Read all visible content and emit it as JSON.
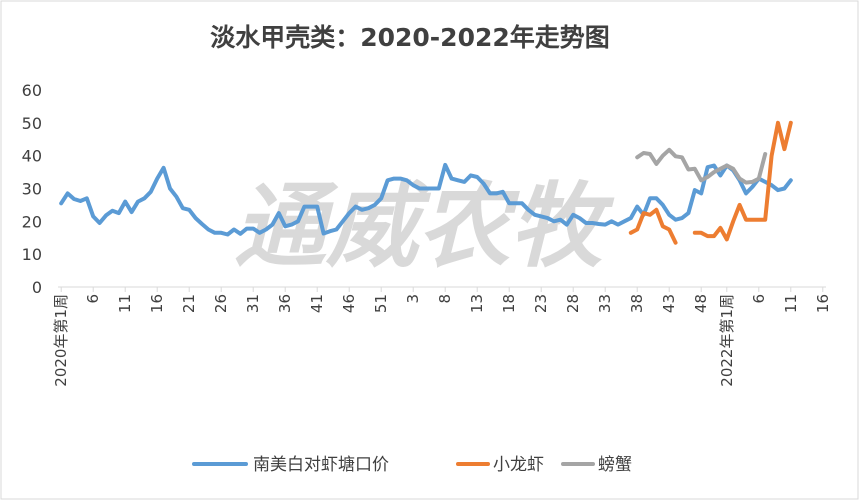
{
  "chart_data": {
    "type": "line",
    "title": "淡水甲壳类：2020-2022年走势图",
    "watermark": "通威农牧",
    "ylim": [
      0,
      60
    ],
    "yticks": [
      0,
      10,
      20,
      30,
      40,
      50,
      60
    ],
    "grid": false,
    "legend_position": "bottom",
    "x_count": 120,
    "xtick_labels": [
      {
        "i": 0,
        "label": "2020年第1周"
      },
      {
        "i": 5,
        "label": "6"
      },
      {
        "i": 10,
        "label": "11"
      },
      {
        "i": 15,
        "label": "16"
      },
      {
        "i": 20,
        "label": "21"
      },
      {
        "i": 25,
        "label": "26"
      },
      {
        "i": 30,
        "label": "31"
      },
      {
        "i": 35,
        "label": "36"
      },
      {
        "i": 40,
        "label": "41"
      },
      {
        "i": 45,
        "label": "46"
      },
      {
        "i": 50,
        "label": "51"
      },
      {
        "i": 55,
        "label": "3"
      },
      {
        "i": 60,
        "label": "8"
      },
      {
        "i": 65,
        "label": "13"
      },
      {
        "i": 70,
        "label": "18"
      },
      {
        "i": 75,
        "label": "23"
      },
      {
        "i": 80,
        "label": "28"
      },
      {
        "i": 85,
        "label": "33"
      },
      {
        "i": 90,
        "label": "38"
      },
      {
        "i": 95,
        "label": "43"
      },
      {
        "i": 100,
        "label": "48"
      },
      {
        "i": 104,
        "label": "2022年第1周"
      },
      {
        "i": 109,
        "label": "6"
      },
      {
        "i": 114,
        "label": "11"
      },
      {
        "i": 119,
        "label": "16"
      }
    ],
    "series": [
      {
        "name": "南美白对虾塘口价",
        "color": "#5b9bd5",
        "points": [
          [
            0,
            25.5
          ],
          [
            1,
            28.5
          ],
          [
            2,
            26.8
          ],
          [
            3,
            26.2
          ],
          [
            4,
            27
          ],
          [
            5,
            21.5
          ],
          [
            6,
            19.5
          ],
          [
            7,
            21.8
          ],
          [
            8,
            23.2
          ],
          [
            9,
            22.5
          ],
          [
            10,
            26
          ],
          [
            11,
            22.8
          ],
          [
            12,
            26
          ],
          [
            13,
            27
          ],
          [
            14,
            29
          ],
          [
            15,
            33
          ],
          [
            16,
            36.3
          ],
          [
            17,
            30
          ],
          [
            18,
            27.5
          ],
          [
            19,
            24
          ],
          [
            20,
            23.5
          ],
          [
            21,
            21
          ],
          [
            22,
            19.2
          ],
          [
            23,
            17.5
          ],
          [
            24,
            16.5
          ],
          [
            25,
            16.5
          ],
          [
            26,
            16
          ],
          [
            27,
            17.5
          ],
          [
            28,
            16.2
          ],
          [
            29,
            17.8
          ],
          [
            30,
            17.8
          ],
          [
            31,
            16.5
          ],
          [
            32,
            17.5
          ],
          [
            33,
            19
          ],
          [
            34,
            22.5
          ],
          [
            35,
            18.5
          ],
          [
            36,
            19
          ],
          [
            37,
            20
          ],
          [
            38,
            24.5
          ],
          [
            39,
            24.5
          ],
          [
            40,
            24.5
          ],
          [
            41,
            16.3
          ],
          [
            42,
            17
          ],
          [
            43,
            17.5
          ],
          [
            44,
            20
          ],
          [
            45,
            22.5
          ],
          [
            46,
            24.5
          ],
          [
            47,
            23.5
          ],
          [
            48,
            24
          ],
          [
            49,
            25
          ],
          [
            50,
            27
          ],
          [
            51,
            32.5
          ],
          [
            52,
            33
          ],
          [
            53,
            33
          ],
          [
            54,
            32.5
          ],
          [
            55,
            31
          ],
          [
            56,
            30
          ],
          [
            57,
            30
          ],
          [
            58,
            30
          ],
          [
            59,
            30
          ],
          [
            60,
            37.2
          ],
          [
            61,
            33
          ],
          [
            62,
            32.5
          ],
          [
            63,
            32
          ],
          [
            64,
            34
          ],
          [
            65,
            33.5
          ],
          [
            66,
            31.5
          ],
          [
            67,
            28.5
          ],
          [
            68,
            28.5
          ],
          [
            69,
            29
          ],
          [
            70,
            25.5
          ],
          [
            71,
            25.5
          ],
          [
            72,
            25.5
          ],
          [
            73,
            23.5
          ],
          [
            74,
            22
          ],
          [
            75,
            21.5
          ],
          [
            76,
            21
          ],
          [
            77,
            20
          ],
          [
            78,
            20.5
          ],
          [
            79,
            19
          ],
          [
            80,
            22
          ],
          [
            81,
            21
          ],
          [
            82,
            19.5
          ],
          [
            83,
            19.5
          ],
          [
            84,
            19.2
          ],
          [
            85,
            19
          ],
          [
            86,
            20
          ],
          [
            87,
            19
          ],
          [
            88,
            20
          ],
          [
            89,
            21
          ],
          [
            90,
            24.5
          ],
          [
            91,
            22
          ],
          [
            92,
            27
          ],
          [
            93,
            27
          ],
          [
            94,
            25
          ],
          [
            95,
            22
          ],
          [
            96,
            20.5
          ],
          [
            97,
            21
          ],
          [
            98,
            22.5
          ],
          [
            99,
            29.5
          ],
          [
            100,
            28.5
          ],
          [
            101,
            36.5
          ],
          [
            102,
            37
          ],
          [
            103,
            34
          ],
          [
            104,
            37
          ],
          [
            105,
            35.5
          ],
          [
            106,
            32.5
          ],
          [
            107,
            28.5
          ],
          [
            108,
            30.5
          ],
          [
            109,
            33
          ],
          [
            110,
            32
          ],
          [
            111,
            31
          ],
          [
            112,
            29.5
          ],
          [
            113,
            30
          ],
          [
            114,
            32.5
          ]
        ]
      },
      {
        "name": "小龙虾",
        "color": "#ed7d31",
        "points": [
          [
            89,
            16.5
          ],
          [
            90,
            17.5
          ],
          [
            91,
            22.5
          ],
          [
            92,
            22
          ],
          [
            93,
            23.5
          ],
          [
            94,
            18.5
          ],
          [
            95,
            17.5
          ],
          [
            96,
            13.5
          ],
          [
            null,
            null
          ],
          [
            99,
            16.5
          ],
          [
            100,
            16.5
          ],
          [
            101,
            15.5
          ],
          [
            102,
            15.5
          ],
          [
            103,
            18
          ],
          [
            104,
            14.5
          ],
          [
            105,
            20
          ],
          [
            106,
            25
          ],
          [
            107,
            20.5
          ],
          [
            108,
            20.5
          ],
          [
            109,
            20.5
          ],
          [
            110,
            20.5
          ],
          [
            111,
            40
          ],
          [
            112,
            50
          ],
          [
            113,
            42
          ],
          [
            114,
            50
          ]
        ]
      },
      {
        "name": "螃蟹",
        "color": "#a5a5a5",
        "points": [
          [
            90,
            39.5
          ],
          [
            91,
            40.8
          ],
          [
            92,
            40.5
          ],
          [
            93,
            37.5
          ],
          [
            94,
            40
          ],
          [
            95,
            41.8
          ],
          [
            96,
            39.8
          ],
          [
            97,
            39.5
          ],
          [
            98,
            35.8
          ],
          [
            99,
            36
          ],
          [
            100,
            32.5
          ],
          [
            101,
            33.5
          ],
          [
            102,
            35
          ],
          [
            103,
            36
          ],
          [
            104,
            37
          ],
          [
            105,
            36
          ],
          [
            106,
            33
          ],
          [
            107,
            31.8
          ],
          [
            108,
            32
          ],
          [
            109,
            33
          ],
          [
            110,
            40.5
          ]
        ]
      }
    ]
  }
}
